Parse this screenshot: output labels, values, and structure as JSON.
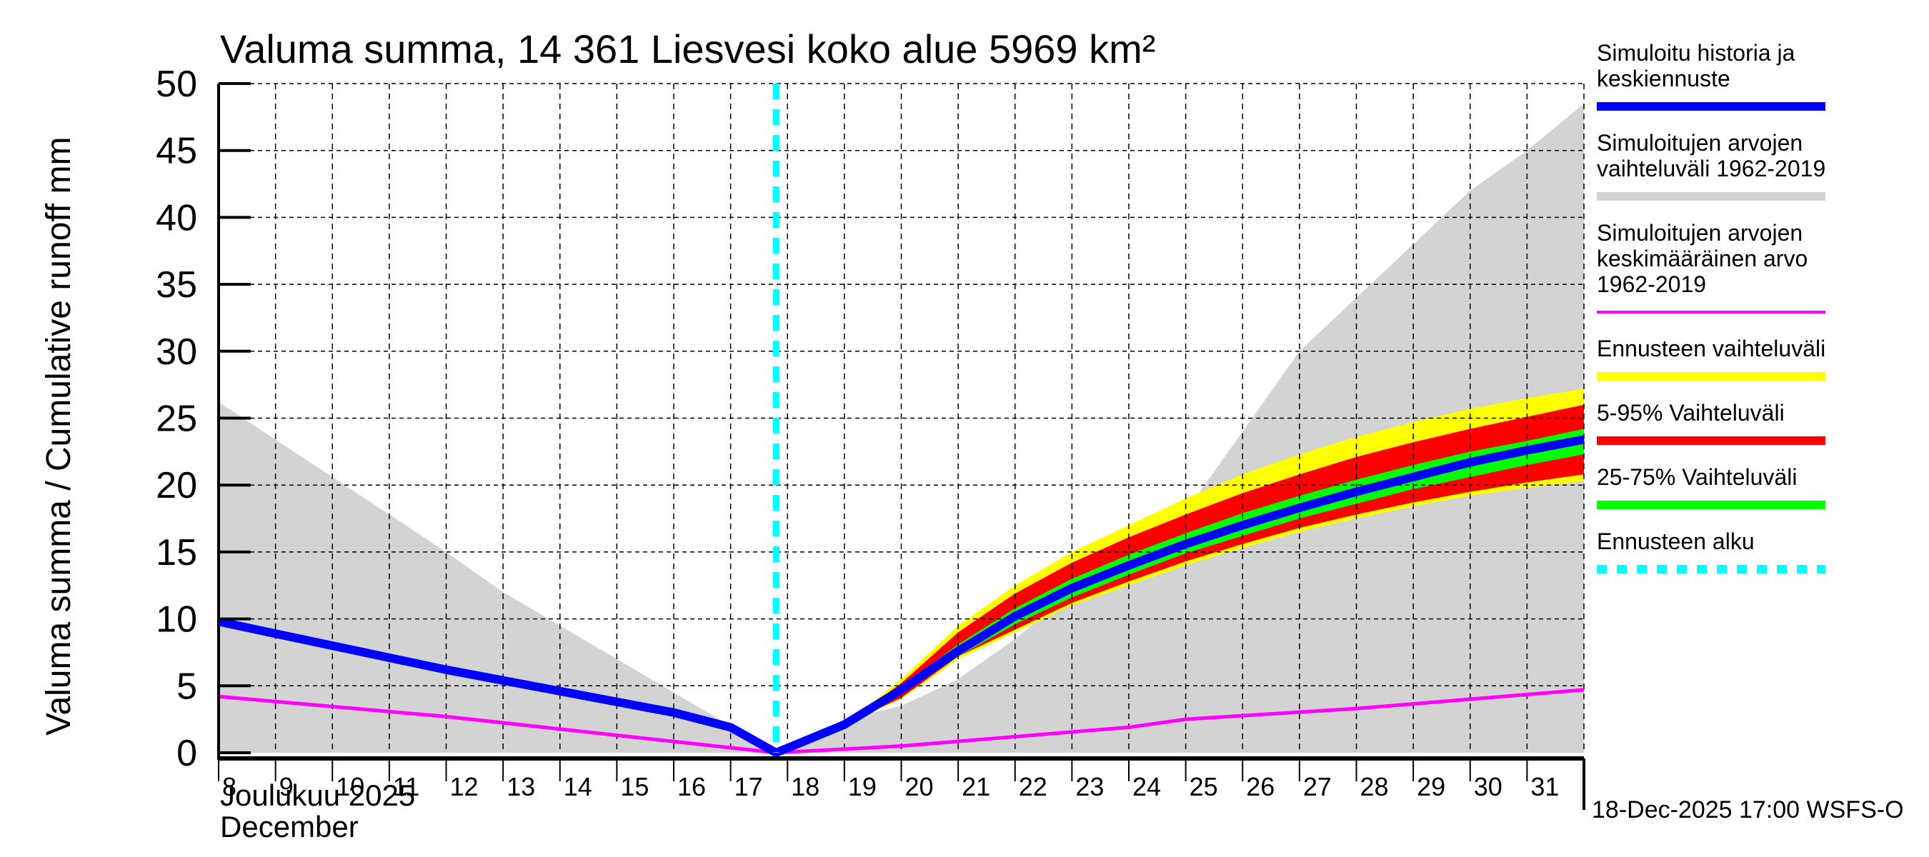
{
  "chart_data": {
    "type": "area",
    "title": "Valuma summa, 14 361 Liesvesi koko alue 5969 km²",
    "ylabel": "Valuma summa / Cumulative runoff    mm",
    "xlabel_line1": "Joulukuu  2025",
    "xlabel_line2": "December",
    "footer": "18-Dec-2025 17:00 WSFS-O",
    "xlim": [
      8,
      32
    ],
    "ylim": [
      0,
      50
    ],
    "grid": true,
    "legend_position": "right",
    "x_ticks": [
      8,
      9,
      10,
      11,
      12,
      13,
      14,
      15,
      16,
      17,
      18,
      19,
      20,
      21,
      22,
      23,
      24,
      25,
      26,
      27,
      28,
      29,
      30,
      31
    ],
    "x_tick_labels": [
      "8",
      "9",
      "10",
      "11",
      "12",
      "13",
      "14",
      "15",
      "16",
      "17",
      "18",
      "19",
      "20",
      "21",
      "22",
      "23",
      "24",
      "25",
      "26",
      "27",
      "28",
      "29",
      "30",
      "31"
    ],
    "y_ticks": [
      0,
      5,
      10,
      15,
      20,
      25,
      30,
      35,
      40,
      45,
      50
    ],
    "y_tick_labels": [
      "0",
      "5",
      "10",
      "15",
      "20",
      "25",
      "30",
      "35",
      "40",
      "45",
      "50"
    ],
    "forecast_start": 17.8,
    "series": [
      {
        "name": "Simuloitujen arvojen vaihteluväli 1962-2019",
        "kind": "band",
        "color": "#d3d3d3",
        "x": [
          8,
          12,
          13,
          17.8,
          19,
          20,
          21,
          22,
          23,
          24,
          25,
          26,
          27,
          28,
          29,
          30,
          31,
          32
        ],
        "upper": [
          26.2,
          15,
          12,
          0,
          2.5,
          3.5,
          5.5,
          8.5,
          12,
          14.5,
          18,
          24,
          30,
          34,
          38,
          42,
          45,
          48.5
        ],
        "lower": [
          0,
          0,
          0,
          0,
          0,
          0,
          0,
          0,
          0,
          0,
          0,
          0,
          0,
          0,
          0,
          0,
          0,
          0
        ]
      },
      {
        "name": "Ennusteen vaihteluväli",
        "kind": "band",
        "color": "#ffff00",
        "x": [
          19,
          20,
          21,
          22,
          23,
          24,
          25,
          26,
          27,
          28,
          29,
          30,
          31,
          32
        ],
        "upper": [
          2.1,
          5.5,
          9.5,
          12.5,
          15,
          17,
          19,
          20.8,
          22.3,
          23.6,
          24.7,
          25.7,
          26.5,
          27.2
        ],
        "lower": [
          2.1,
          4.0,
          7.0,
          9.0,
          11.0,
          12.5,
          14.0,
          15.3,
          16.5,
          17.5,
          18.4,
          19.2,
          19.8,
          20.3
        ]
      },
      {
        "name": "5-95% Vaihteluväli",
        "kind": "band",
        "color": "#ff0000",
        "x": [
          19,
          20,
          21,
          22,
          23,
          24,
          25,
          26,
          27,
          28,
          29,
          30,
          31,
          32
        ],
        "upper": [
          2.1,
          5.2,
          9.0,
          11.9,
          14.2,
          16.1,
          17.8,
          19.4,
          20.8,
          22.1,
          23.2,
          24.2,
          25.1,
          26.0
        ],
        "lower": [
          2.1,
          4.1,
          7.2,
          9.2,
          11.2,
          12.8,
          14.3,
          15.6,
          16.8,
          17.8,
          18.7,
          19.5,
          20.2,
          20.8
        ]
      },
      {
        "name": "25-75% Vaihteluväli",
        "kind": "band",
        "color": "#00ff00",
        "x": [
          19,
          20,
          21,
          22,
          23,
          24,
          25,
          26,
          27,
          28,
          29,
          30,
          31,
          32
        ],
        "upper": [
          2.1,
          4.9,
          8.1,
          10.8,
          13.0,
          14.8,
          16.4,
          17.9,
          19.2,
          20.4,
          21.5,
          22.5,
          23.3,
          24.2
        ],
        "lower": [
          2.1,
          4.5,
          7.2,
          9.6,
          11.6,
          13.3,
          14.9,
          16.2,
          17.5,
          18.6,
          19.7,
          20.6,
          21.5,
          22.3
        ]
      },
      {
        "name": "Simuloitujen arvojen keskimääräinen arvo 1962-2019",
        "kind": "line",
        "color": "#ff00ff",
        "x": [
          8,
          12,
          17.8,
          20,
          24,
          25,
          28,
          32
        ],
        "y": [
          4.2,
          2.7,
          0,
          0.5,
          1.9,
          2.5,
          3.3,
          4.7
        ]
      },
      {
        "name": "Simuloitu historia ja keskiennuste",
        "kind": "line",
        "color": "#0000ff",
        "x": [
          8,
          9,
          10,
          11,
          12,
          13,
          14,
          15,
          16,
          17,
          17.8,
          19,
          20,
          21,
          22,
          23,
          24,
          25,
          26,
          27,
          28,
          29,
          30,
          31,
          32
        ],
        "y": [
          9.8,
          8.9,
          8.0,
          7.1,
          6.2,
          5.4,
          4.6,
          3.8,
          3.0,
          1.9,
          0,
          2.1,
          4.7,
          7.6,
          10.2,
          12.3,
          14.0,
          15.6,
          17.0,
          18.3,
          19.5,
          20.6,
          21.7,
          22.6,
          23.4
        ]
      }
    ],
    "legend": [
      {
        "label_lines": [
          "Simuloitu historia ja",
          "keskiennuste"
        ],
        "color": "#0000ff",
        "style": "solid"
      },
      {
        "label_lines": [
          "Simuloitujen arvojen",
          "vaihteluväli 1962-2019"
        ],
        "color": "#d3d3d3",
        "style": "solid"
      },
      {
        "label_lines": [
          "Simuloitujen arvojen",
          "keskimääräinen arvo",
          "   1962-2019"
        ],
        "color": "#ff00ff",
        "style": "thin"
      },
      {
        "label_lines": [
          "Ennusteen vaihteluväli"
        ],
        "color": "#ffff00",
        "style": "solid"
      },
      {
        "label_lines": [
          "5-95% Vaihteluväli"
        ],
        "color": "#ff0000",
        "style": "solid"
      },
      {
        "label_lines": [
          "25-75% Vaihteluväli"
        ],
        "color": "#00ff00",
        "style": "solid"
      },
      {
        "label_lines": [
          "Ennusteen alku"
        ],
        "color": "#00ffff",
        "style": "dashed"
      }
    ]
  }
}
